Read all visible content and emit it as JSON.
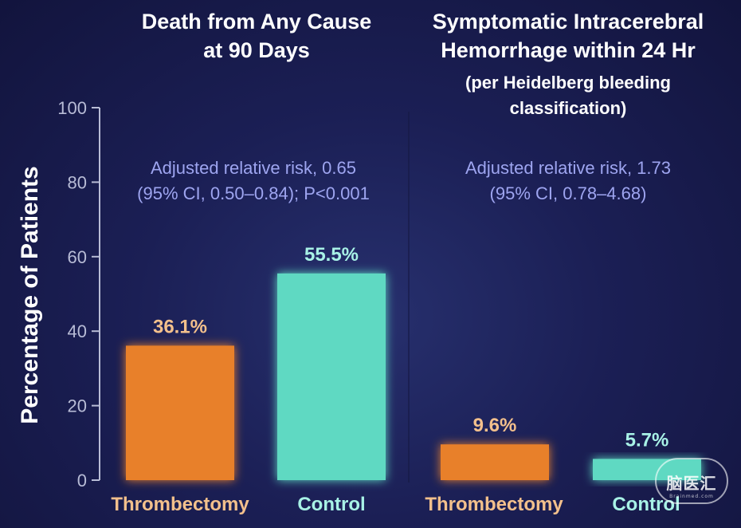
{
  "chart_data": {
    "type": "bar",
    "ylabel": "Percentage of Patients",
    "ylim": [
      0,
      100
    ],
    "yticks": [
      0,
      20,
      40,
      60,
      80,
      100
    ],
    "panels": [
      {
        "title_lines": [
          "Death from Any Cause",
          "at 90 Days"
        ],
        "subtitle_lines": [],
        "annotation_lines": [
          "Adjusted relative risk, 0.65",
          "(95% CI, 0.50–0.84); P<0.001"
        ],
        "categories": [
          "Thrombectomy",
          "Control"
        ],
        "values": [
          36.1,
          55.5
        ],
        "labels": [
          "36.1%",
          "55.5%"
        ]
      },
      {
        "title_lines": [
          "Symptomatic Intracerebral",
          "Hemorrhage within 24 Hr"
        ],
        "subtitle_lines": [
          "(per Heidelberg bleeding",
          "classification)"
        ],
        "annotation_lines": [
          "Adjusted relative risk, 1.73",
          "(95% CI, 0.78–4.68)"
        ],
        "categories": [
          "Thrombectomy",
          "Control"
        ],
        "values": [
          9.6,
          5.7
        ],
        "labels": [
          "9.6%",
          "5.7%"
        ]
      }
    ],
    "colors": {
      "thrombectomy": "#e8802a",
      "control": "#5fd9c2",
      "thrombectomy_label": "#f3c08c",
      "control_label": "#a8f2e6",
      "annotation": "#9ea5f0",
      "title": "#ffffff",
      "axis": "#b8bcd6"
    }
  },
  "watermark": {
    "main": "脑医汇",
    "sub": "Brainmed.com"
  }
}
